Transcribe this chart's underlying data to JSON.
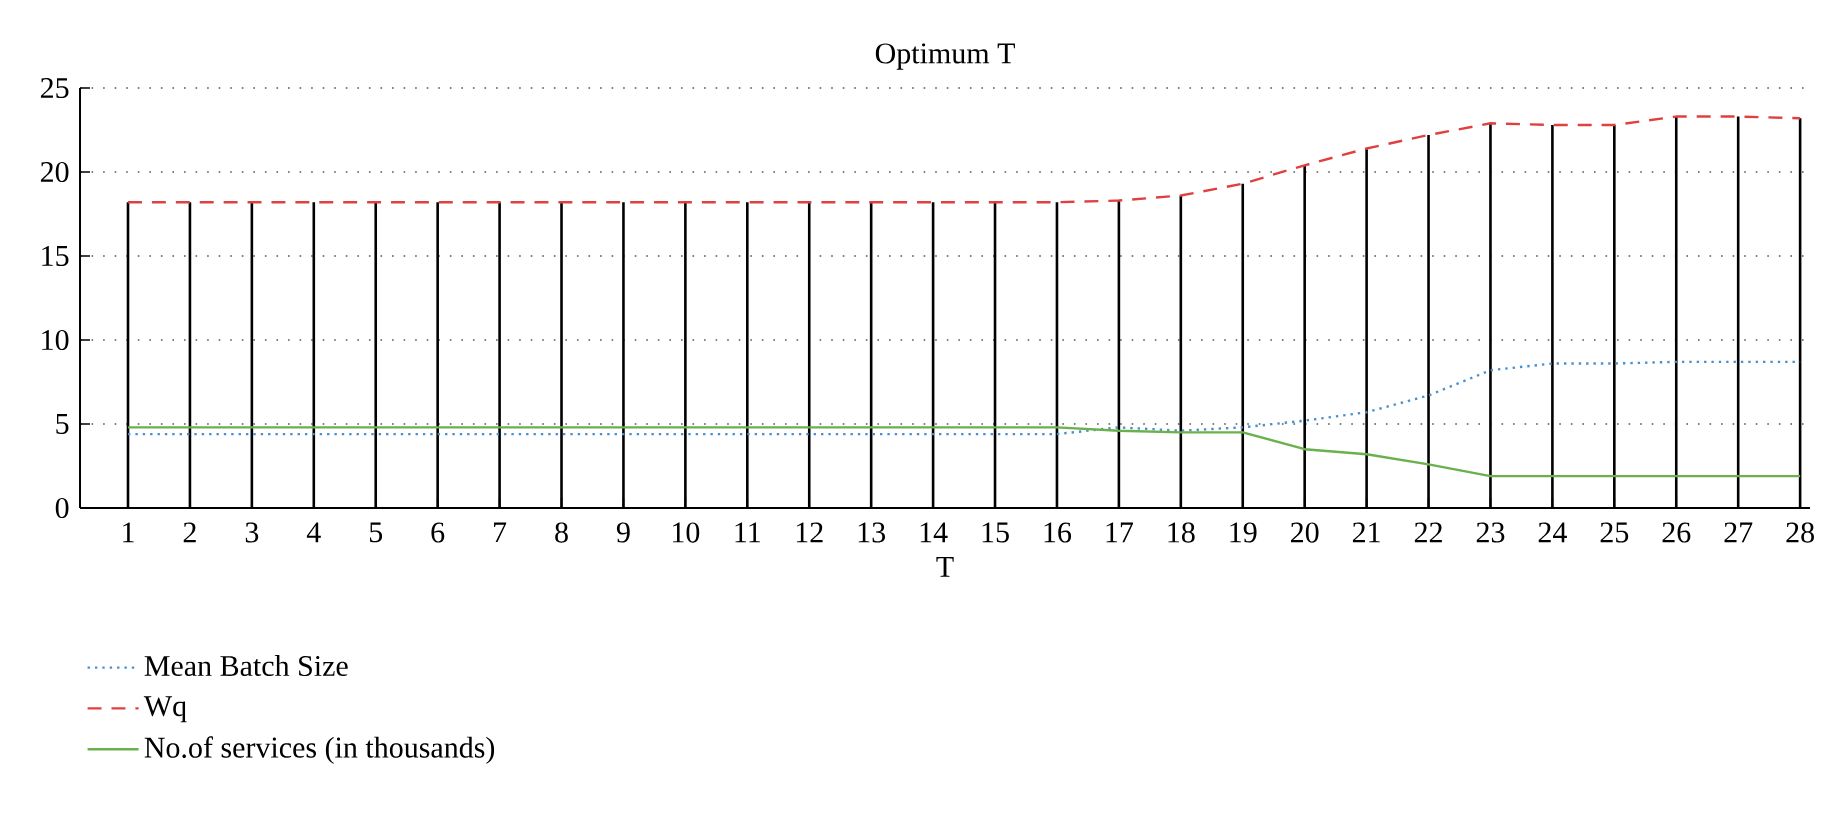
{
  "chart_data": {
    "type": "line",
    "title": "Optimum T",
    "xlabel": "T",
    "categories": [
      "1",
      "2",
      "3",
      "4",
      "5",
      "6",
      "7",
      "8",
      "9",
      "10",
      "11",
      "12",
      "13",
      "14",
      "15",
      "16",
      "17",
      "18",
      "19",
      "20",
      "21",
      "22",
      "23",
      "24",
      "25",
      "26",
      "27",
      "28"
    ],
    "series": [
      {
        "name": "Mean Batch Size",
        "color": "#4a90d0",
        "line_style": "dotted",
        "values": [
          4.4,
          4.4,
          4.4,
          4.4,
          4.4,
          4.4,
          4.4,
          4.4,
          4.4,
          4.4,
          4.4,
          4.4,
          4.4,
          4.4,
          4.4,
          4.4,
          4.8,
          4.6,
          4.8,
          5.2,
          5.7,
          6.7,
          8.2,
          8.6,
          8.6,
          8.7,
          8.7,
          8.7
        ]
      },
      {
        "name": "Wq",
        "color": "#e04040",
        "line_style": "dashed",
        "values": [
          18.2,
          18.2,
          18.2,
          18.2,
          18.2,
          18.2,
          18.2,
          18.2,
          18.2,
          18.2,
          18.2,
          18.2,
          18.2,
          18.2,
          18.2,
          18.2,
          18.3,
          18.6,
          19.3,
          20.4,
          21.4,
          22.2,
          22.9,
          22.8,
          22.8,
          23.3,
          23.3,
          23.2
        ]
      },
      {
        "name": "No.of services (in thousands)",
        "color": "#6ab04c",
        "line_style": "solid",
        "values": [
          4.8,
          4.8,
          4.8,
          4.8,
          4.8,
          4.8,
          4.8,
          4.8,
          4.8,
          4.8,
          4.8,
          4.8,
          4.8,
          4.8,
          4.8,
          4.8,
          4.6,
          4.5,
          4.5,
          3.5,
          3.2,
          2.6,
          1.9,
          1.9,
          1.9,
          1.9,
          1.9,
          1.9
        ]
      },
      {
        "type": "bar",
        "color": "#000000",
        "values": [
          18.2,
          18.2,
          18.2,
          18.2,
          18.2,
          18.2,
          18.2,
          18.2,
          18.2,
          18.2,
          18.2,
          18.2,
          18.2,
          18.2,
          18.2,
          18.2,
          18.3,
          18.6,
          19.3,
          20.4,
          21.4,
          22.2,
          22.9,
          22.8,
          22.8,
          23.3,
          23.3,
          23.2
        ]
      }
    ],
    "ylim": [
      0,
      25
    ],
    "yticks": [
      0,
      5,
      10,
      15,
      20,
      25
    ],
    "grid": "y",
    "legend": "bottom"
  }
}
